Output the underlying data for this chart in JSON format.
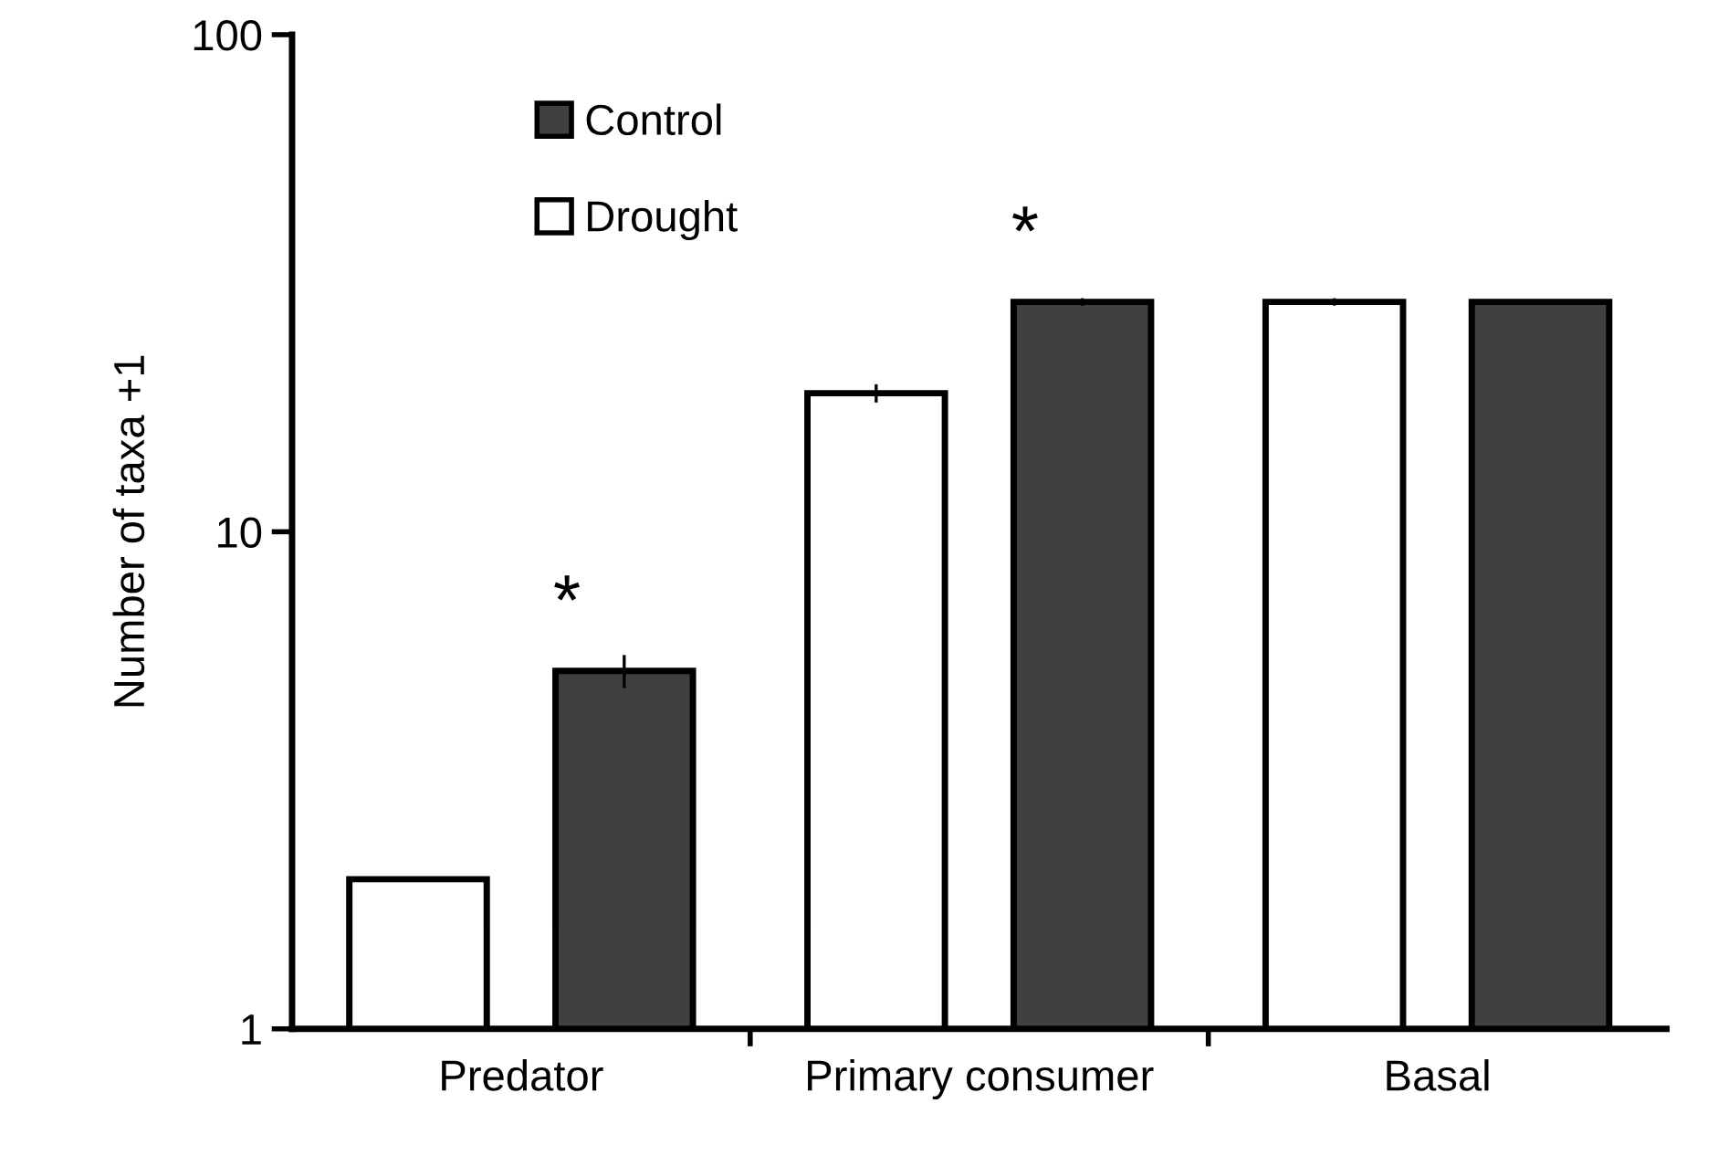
{
  "chart_data": {
    "type": "bar",
    "ylabel": "Number of taxa +1",
    "categories": [
      "Predator",
      "Primary consumer",
      "Basal"
    ],
    "series": [
      {
        "name": "Drought",
        "color": "#ffffff",
        "values": [
          2,
          19,
          29
        ],
        "errors": [
          null,
          0.8,
          0.5
        ]
      },
      {
        "name": "Control",
        "color": "#404040",
        "values": [
          5.25,
          29,
          29
        ],
        "errors": [
          0.4,
          0.5,
          0.3
        ]
      }
    ],
    "log": true,
    "ylim": [
      1,
      100
    ],
    "yticks": [
      1,
      10,
      100
    ],
    "grid": false,
    "legend": "top left",
    "annotations": [
      "*",
      "*"
    ]
  }
}
